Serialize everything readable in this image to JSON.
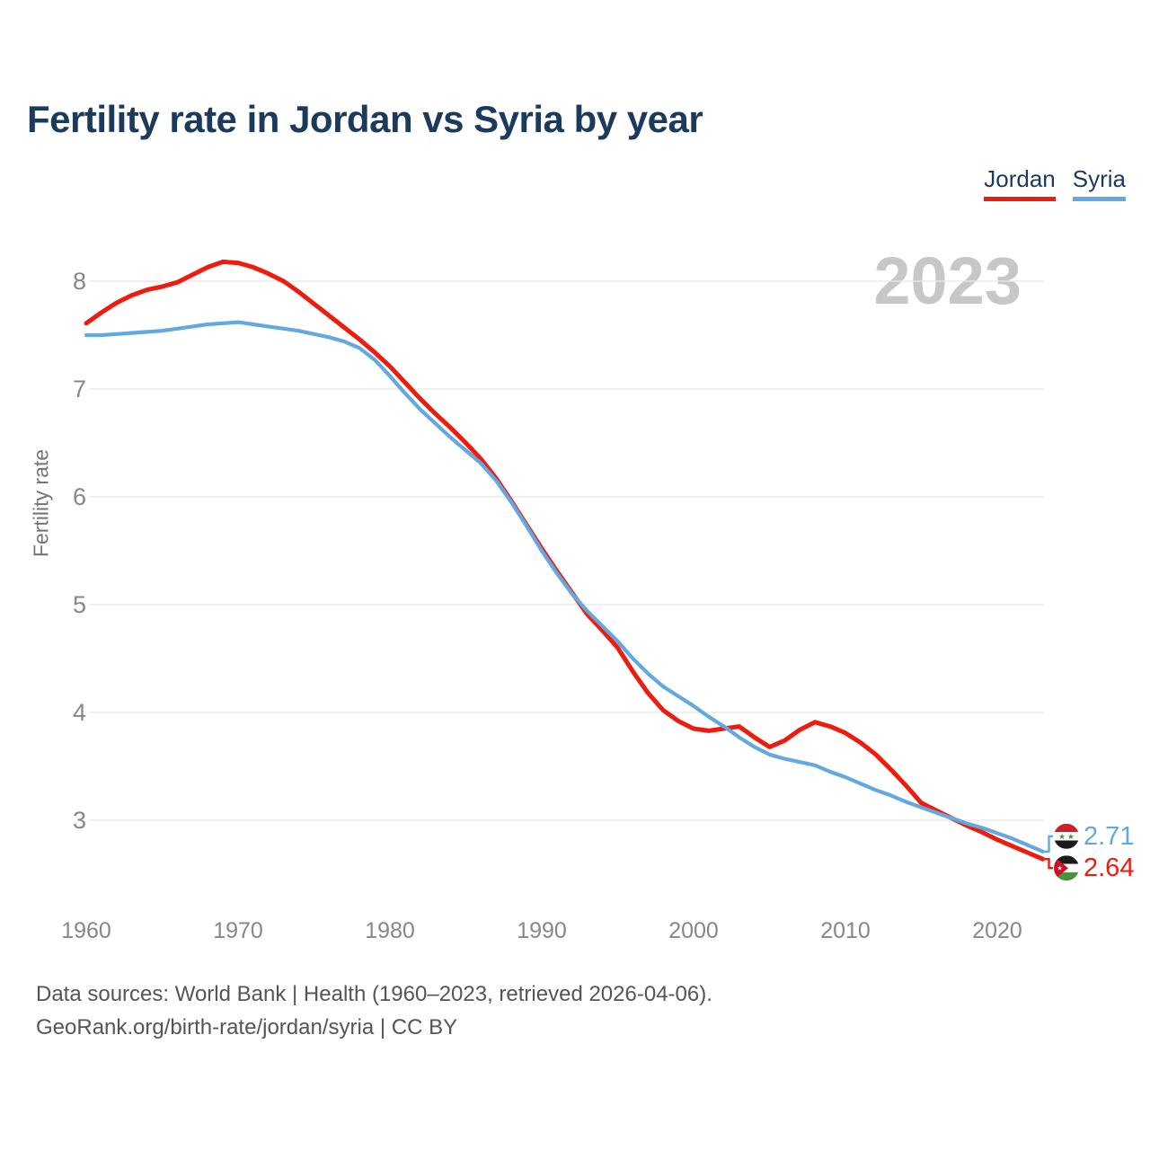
{
  "header": {
    "title": "Fertility rate in Jordan vs Syria by year"
  },
  "legend": {
    "items": [
      {
        "label": "Jordan",
        "color": "#ee1c0f"
      },
      {
        "label": "Syria",
        "color": "#64a8e2"
      }
    ]
  },
  "chart": {
    "watermark": "2023",
    "y_axis_title": "Fertility rate"
  },
  "chart_data": {
    "type": "line",
    "title": "Fertility rate in Jordan vs Syria by year",
    "xlabel": "",
    "ylabel": "Fertility rate",
    "ylim": [
      2.5,
      8.4
    ],
    "yticks": [
      8,
      7,
      6,
      5,
      4,
      3
    ],
    "xticks": [
      1960,
      1970,
      1980,
      1990,
      2000,
      2010,
      2020
    ],
    "grid": "horizontal",
    "legend_position": "top-right",
    "years": [
      1960,
      1961,
      1962,
      1963,
      1964,
      1965,
      1966,
      1967,
      1968,
      1969,
      1970,
      1971,
      1972,
      1973,
      1974,
      1975,
      1976,
      1977,
      1978,
      1979,
      1980,
      1981,
      1982,
      1983,
      1984,
      1985,
      1986,
      1987,
      1988,
      1989,
      1990,
      1991,
      1992,
      1993,
      1994,
      1995,
      1996,
      1997,
      1998,
      1999,
      2000,
      2001,
      2002,
      2003,
      2004,
      2005,
      2006,
      2007,
      2008,
      2009,
      2010,
      2011,
      2012,
      2013,
      2014,
      2015,
      2016,
      2017,
      2018,
      2019,
      2020,
      2021,
      2022,
      2023
    ],
    "series": [
      {
        "name": "Jordan",
        "color": "#ee1c0f",
        "values": [
          7.61,
          7.71,
          7.8,
          7.87,
          7.92,
          7.95,
          7.99,
          8.06,
          8.13,
          8.18,
          8.17,
          8.13,
          8.07,
          8.0,
          7.9,
          7.79,
          7.68,
          7.57,
          7.46,
          7.34,
          7.21,
          7.06,
          6.91,
          6.77,
          6.64,
          6.5,
          6.35,
          6.17,
          5.96,
          5.74,
          5.52,
          5.31,
          5.11,
          4.91,
          4.76,
          4.6,
          4.38,
          4.18,
          4.02,
          3.92,
          3.85,
          3.83,
          3.85,
          3.87,
          3.77,
          3.68,
          3.74,
          3.84,
          3.91,
          3.87,
          3.81,
          3.72,
          3.61,
          3.47,
          3.32,
          3.16,
          3.09,
          3.02,
          2.95,
          2.89,
          2.82,
          2.76,
          2.7,
          2.64
        ]
      },
      {
        "name": "Syria",
        "color": "#64a8e2",
        "values": [
          7.5,
          7.5,
          7.51,
          7.52,
          7.53,
          7.54,
          7.56,
          7.58,
          7.6,
          7.61,
          7.62,
          7.6,
          7.58,
          7.56,
          7.54,
          7.51,
          7.48,
          7.44,
          7.38,
          7.27,
          7.12,
          6.96,
          6.81,
          6.68,
          6.55,
          6.43,
          6.31,
          6.15,
          5.95,
          5.73,
          5.5,
          5.29,
          5.1,
          4.94,
          4.8,
          4.66,
          4.5,
          4.36,
          4.24,
          4.15,
          4.06,
          3.96,
          3.87,
          3.77,
          3.68,
          3.61,
          3.57,
          3.54,
          3.51,
          3.45,
          3.4,
          3.34,
          3.28,
          3.23,
          3.17,
          3.12,
          3.07,
          3.02,
          2.97,
          2.93,
          2.88,
          2.83,
          2.77,
          2.71
        ]
      }
    ],
    "end_labels": [
      {
        "series": "Syria",
        "value": "2.71",
        "flag": "syria-flag-icon"
      },
      {
        "series": "Jordan",
        "value": "2.64",
        "flag": "jordan-flag-icon"
      }
    ]
  },
  "footer": {
    "line1": "Data sources: World Bank | Health (1960–2023, retrieved 2026-04-06).",
    "line2": "GeoRank.org/birth-rate/jordan/syria | CC BY"
  }
}
